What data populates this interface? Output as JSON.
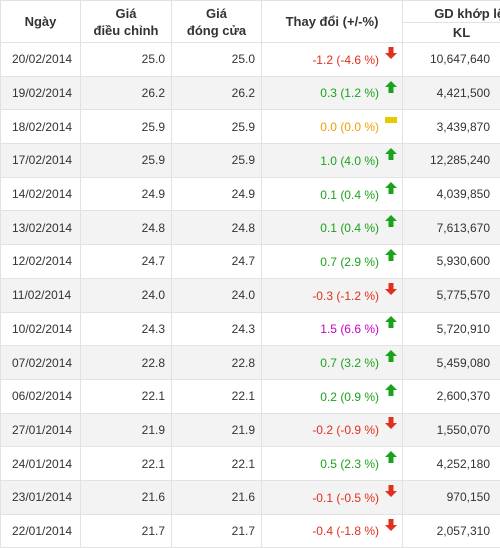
{
  "headers": {
    "date": "Ngày",
    "adjusted_price_line1": "Giá",
    "adjusted_price_line2": "điều chỉnh",
    "closing_price_line1": "Giá",
    "closing_price_line2": "đóng cửa",
    "change": "Thay đổi (+/-%)",
    "volume_group": "GD khớp lệnh",
    "volume": "KL"
  },
  "colors": {
    "down": "#e0301e",
    "up": "#1aa31a",
    "flat": "#f0a000",
    "ceiling": "#c800c8"
  },
  "rows": [
    {
      "date": "20/02/2014",
      "adjusted": "25.0",
      "close": "25.0",
      "change": "-1.2 (-4.6 %)",
      "direction": "down",
      "icon": "arrow-down-icon",
      "volume": "10,647,640"
    },
    {
      "date": "19/02/2014",
      "adjusted": "26.2",
      "close": "26.2",
      "change": "0.3 (1.2 %)",
      "direction": "up",
      "icon": "arrow-up-icon",
      "volume": "4,421,500"
    },
    {
      "date": "18/02/2014",
      "adjusted": "25.9",
      "close": "25.9",
      "change": "0.0 (0.0 %)",
      "direction": "flat",
      "icon": "unchanged-icon",
      "volume": "3,439,870"
    },
    {
      "date": "17/02/2014",
      "adjusted": "25.9",
      "close": "25.9",
      "change": "1.0 (4.0 %)",
      "direction": "up",
      "icon": "arrow-up-icon",
      "volume": "12,285,240"
    },
    {
      "date": "14/02/2014",
      "adjusted": "24.9",
      "close": "24.9",
      "change": "0.1 (0.4 %)",
      "direction": "up",
      "icon": "arrow-up-icon",
      "volume": "4,039,850"
    },
    {
      "date": "13/02/2014",
      "adjusted": "24.8",
      "close": "24.8",
      "change": "0.1 (0.4 %)",
      "direction": "up",
      "icon": "arrow-up-icon",
      "volume": "7,613,670"
    },
    {
      "date": "12/02/2014",
      "adjusted": "24.7",
      "close": "24.7",
      "change": "0.7 (2.9 %)",
      "direction": "up",
      "icon": "arrow-up-icon",
      "volume": "5,930,600"
    },
    {
      "date": "11/02/2014",
      "adjusted": "24.0",
      "close": "24.0",
      "change": "-0.3 (-1.2 %)",
      "direction": "down",
      "icon": "arrow-down-icon",
      "volume": "5,775,570"
    },
    {
      "date": "10/02/2014",
      "adjusted": "24.3",
      "close": "24.3",
      "change": "1.5 (6.6 %)",
      "direction": "ceil",
      "icon": "arrow-up-icon",
      "volume": "5,720,910"
    },
    {
      "date": "07/02/2014",
      "adjusted": "22.8",
      "close": "22.8",
      "change": "0.7 (3.2 %)",
      "direction": "up",
      "icon": "arrow-up-icon",
      "volume": "5,459,080"
    },
    {
      "date": "06/02/2014",
      "adjusted": "22.1",
      "close": "22.1",
      "change": "0.2 (0.9 %)",
      "direction": "up",
      "icon": "arrow-up-icon",
      "volume": "2,600,370"
    },
    {
      "date": "27/01/2014",
      "adjusted": "21.9",
      "close": "21.9",
      "change": "-0.2 (-0.9 %)",
      "direction": "down",
      "icon": "arrow-down-icon",
      "volume": "1,550,070"
    },
    {
      "date": "24/01/2014",
      "adjusted": "22.1",
      "close": "22.1",
      "change": "0.5 (2.3 %)",
      "direction": "up",
      "icon": "arrow-up-icon",
      "volume": "4,252,180"
    },
    {
      "date": "23/01/2014",
      "adjusted": "21.6",
      "close": "21.6",
      "change": "-0.1 (-0.5 %)",
      "direction": "down",
      "icon": "arrow-down-icon",
      "volume": "970,150"
    },
    {
      "date": "22/01/2014",
      "adjusted": "21.7",
      "close": "21.7",
      "change": "-0.4 (-1.8 %)",
      "direction": "down",
      "icon": "arrow-down-icon",
      "volume": "2,057,310"
    }
  ]
}
